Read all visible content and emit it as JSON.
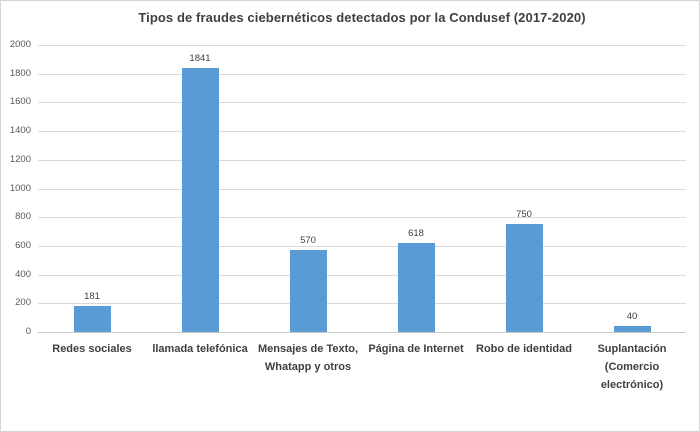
{
  "chart_data": {
    "type": "bar",
    "title": "Tipos de fraudes ciebernéticos detectados por la Condusef (2017-2020)",
    "categories": [
      "Redes sociales",
      "llamada telefónica",
      "Mensajes de Texto,\nWhatapp y otros",
      "Página de Internet",
      "Robo de identidad",
      "Suplantación\n(Comercio\nelectrónico)"
    ],
    "values": [
      181,
      1841,
      570,
      618,
      750,
      40
    ],
    "data_labels": [
      "181",
      "1841",
      "570",
      "618",
      "750",
      "40"
    ],
    "xlabel": "",
    "ylabel": "",
    "ylim": [
      0,
      2000
    ],
    "yticks": [
      0,
      200,
      400,
      600,
      800,
      1000,
      1200,
      1400,
      1600,
      1800,
      2000
    ],
    "grid": true,
    "legend": false,
    "colors": {
      "bar": "#5b9bd5",
      "gridline": "#d9d9d9",
      "axis_line": "#c9c9c9",
      "tick_label": "#595959",
      "text": "#3f3f3f",
      "background": "#ffffff",
      "border": "#d4d4d4"
    }
  }
}
